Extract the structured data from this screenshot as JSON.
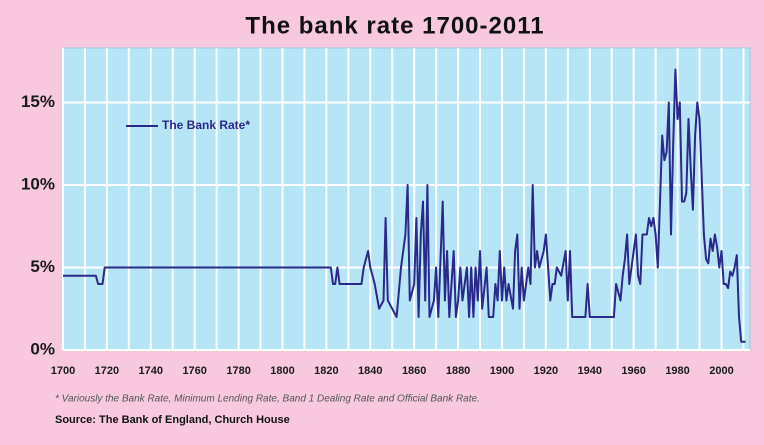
{
  "chart_data": {
    "type": "line",
    "title": "The bank rate 1700-2011",
    "footnote": "* Variously the Bank Rate, Minimum Lending Rate, Band 1 Dealing Rate and Official Bank Rate.",
    "source": "Source: The Bank of England, Church House",
    "x": [
      1700,
      1715,
      1716,
      1718,
      1719,
      1822,
      1823,
      1824,
      1825,
      1826,
      1836,
      1837,
      1839,
      1840,
      1842,
      1844,
      1846,
      1847,
      1848,
      1850,
      1852,
      1854,
      1855,
      1856,
      1857,
      1858,
      1860,
      1861,
      1862,
      1863,
      1864,
      1865,
      1866,
      1867,
      1869,
      1870,
      1871,
      1873,
      1874,
      1875,
      1876,
      1877,
      1878,
      1879,
      1880,
      1881,
      1882,
      1884,
      1885,
      1886,
      1887,
      1888,
      1889,
      1890,
      1891,
      1893,
      1894,
      1896,
      1897,
      1898,
      1899,
      1900,
      1901,
      1902,
      1903,
      1905,
      1906,
      1907,
      1908,
      1909,
      1910,
      1911,
      1912,
      1913,
      1914,
      1915,
      1916,
      1917,
      1919,
      1920,
      1921,
      1922,
      1923,
      1924,
      1925,
      1927,
      1929,
      1930,
      1931,
      1932,
      1938,
      1939,
      1940,
      1951,
      1952,
      1954,
      1955,
      1956,
      1957,
      1958,
      1960,
      1961,
      1962,
      1963,
      1964,
      1966,
      1967,
      1968,
      1969,
      1970,
      1971,
      1972,
      1973,
      1974,
      1975,
      1976,
      1977,
      1978,
      1979,
      1980,
      1981,
      1982,
      1983,
      1984,
      1985,
      1986,
      1987,
      1988,
      1989,
      1990,
      1991,
      1992,
      1993,
      1994,
      1995,
      1996,
      1997,
      1998,
      1999,
      2000,
      2001,
      2002,
      2003,
      2004,
      2005,
      2006,
      2007,
      2008,
      2009,
      2010,
      2011
    ],
    "series": [
      {
        "name": "The Bank Rate*",
        "color": "#2a2a8a",
        "values": [
          4.5,
          4.5,
          4,
          4,
          5,
          5,
          4,
          4,
          5,
          4,
          4,
          5,
          6,
          5,
          4,
          2.5,
          3,
          8,
          3,
          2.5,
          2,
          5,
          6,
          7,
          10,
          3,
          4,
          8,
          2,
          7,
          9,
          3,
          10,
          2,
          3,
          5,
          2,
          9,
          3,
          6,
          2,
          4,
          6,
          2,
          3,
          5,
          3,
          5,
          2,
          5,
          2,
          5,
          3,
          6,
          2.5,
          5,
          2,
          2,
          4,
          3,
          6,
          3,
          5,
          3,
          4,
          2.5,
          6,
          7,
          2.5,
          5,
          3,
          4,
          5,
          4,
          10,
          5,
          6,
          5,
          6,
          7,
          5,
          3,
          4,
          4,
          5,
          4.5,
          6,
          3,
          6,
          2,
          2,
          4,
          2,
          2,
          4,
          3,
          4.5,
          5.5,
          7,
          4,
          6,
          7,
          4.5,
          4,
          7,
          7,
          8,
          7.5,
          8,
          7,
          5,
          9,
          13,
          11.5,
          12,
          15,
          7,
          12.5,
          17,
          14,
          15,
          9,
          9,
          9.5,
          14,
          11,
          8.5,
          13,
          15,
          14,
          10.5,
          7,
          5.5,
          5.25,
          6.75,
          6,
          7,
          6.25,
          5,
          6,
          4,
          4,
          3.75,
          4.75,
          4.5,
          5,
          5.75,
          2,
          0.5,
          0.5,
          0.5
        ]
      }
    ],
    "xlim": [
      1700,
      2013
    ],
    "ylim": [
      0,
      18.3
    ],
    "xticks": [
      1700,
      1720,
      1740,
      1760,
      1780,
      1800,
      1820,
      1840,
      1860,
      1880,
      1900,
      1920,
      1940,
      1960,
      1980,
      2000
    ],
    "x_gridlines": [
      1710,
      1730,
      1750,
      1770,
      1790,
      1810,
      1830,
      1850,
      1870,
      1890,
      1910,
      1930,
      1950,
      1970,
      1990,
      2010
    ],
    "yticks": [
      {
        "value": 0,
        "label": "0%"
      },
      {
        "value": 5,
        "label": "5%"
      },
      {
        "value": 10,
        "label": "10%"
      },
      {
        "value": 15,
        "label": "15%"
      }
    ],
    "grid": true,
    "legend": "upper-left"
  }
}
